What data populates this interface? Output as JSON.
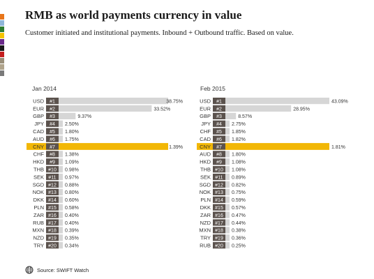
{
  "title": "RMB as world payments currency in value",
  "subtitle": "Customer initiated  and institutional  payments. Inbound + Outbound traffic. Based on value.",
  "source": "Source: SWIFT Watch",
  "colors": {
    "bar": "#d6d6d6",
    "highlight": "#f2b705",
    "rank_box": "#5b524d",
    "strip": [
      "#e8751a",
      "#8fb5d8",
      "#2e7d32",
      "#f5c400",
      "#6a2a8a",
      "#1a1a1a",
      "#c41e1e",
      "#9a8f7a",
      "#b0a48c",
      "#7a7a7a"
    ]
  },
  "chart_data": [
    {
      "type": "bar",
      "title": "Jan 2014",
      "highlight": "CNY",
      "categories": [
        "USD",
        "EUR",
        "GBP",
        "JPY",
        "CAD",
        "AUD",
        "CNY",
        "CHF",
        "HKD",
        "THB",
        "SEK",
        "SGD",
        "NOK",
        "DKK",
        "PLN",
        "ZAR",
        "RUB",
        "MXN",
        "NZD",
        "TRY"
      ],
      "ranks": [
        "#1",
        "#2",
        "#3",
        "#4",
        "#5",
        "#6",
        "#7",
        "#8",
        "#9",
        "#10",
        "#11",
        "#12",
        "#13",
        "#14",
        "#15",
        "#16",
        "#17",
        "#18",
        "#19",
        "#20"
      ],
      "values": [
        38.75,
        33.52,
        9.37,
        2.5,
        1.8,
        1.75,
        1.39,
        1.38,
        1.09,
        0.98,
        0.97,
        0.88,
        0.8,
        0.6,
        0.58,
        0.4,
        0.4,
        0.39,
        0.35,
        0.34
      ],
      "labels": [
        "38.75%",
        "33.52%",
        "9.37%",
        "2.50%",
        "1.80%",
        "1.75%",
        "1.39%",
        "1.38%",
        "1.09%",
        "0.98%",
        "0.97%",
        "0.88%",
        "0.80%",
        "0.60%",
        "0.58%",
        "0.40%",
        "0.40%",
        "0.39%",
        "0.35%",
        "0.34%"
      ]
    },
    {
      "type": "bar",
      "title": "Feb 2015",
      "highlight": "CNY",
      "categories": [
        "USD",
        "EUR",
        "GBP",
        "JPY",
        "CHF",
        "CAD",
        "CNY",
        "AUD",
        "HKD",
        "THB",
        "SEK",
        "SGD",
        "NOK",
        "PLN",
        "DKK",
        "ZAR",
        "NZD",
        "MXN",
        "TRY",
        "RUB"
      ],
      "ranks": [
        "#1",
        "#2",
        "#3",
        "#4",
        "#5",
        "#6",
        "#7",
        "#8",
        "#9",
        "#10",
        "#11",
        "#12",
        "#13",
        "#14",
        "#15",
        "#16",
        "#17",
        "#18",
        "#19",
        "#20"
      ],
      "values": [
        43.09,
        28.95,
        8.57,
        2.75,
        1.85,
        1.82,
        1.81,
        1.8,
        1.08,
        1.08,
        0.89,
        0.82,
        0.75,
        0.59,
        0.57,
        0.47,
        0.44,
        0.38,
        0.36,
        0.25
      ],
      "labels": [
        "43.09%",
        "28.95%",
        "8.57%",
        "2.75%",
        "1.85%",
        "1.82%",
        "1.81%",
        "1.80%",
        "1.08%",
        "1.08%",
        "0.89%",
        "0.82%",
        "0.75%",
        "0.59%",
        "0.57%",
        "0.47%",
        "0.44%",
        "0.38%",
        "0.36%",
        "0.25%"
      ]
    }
  ]
}
